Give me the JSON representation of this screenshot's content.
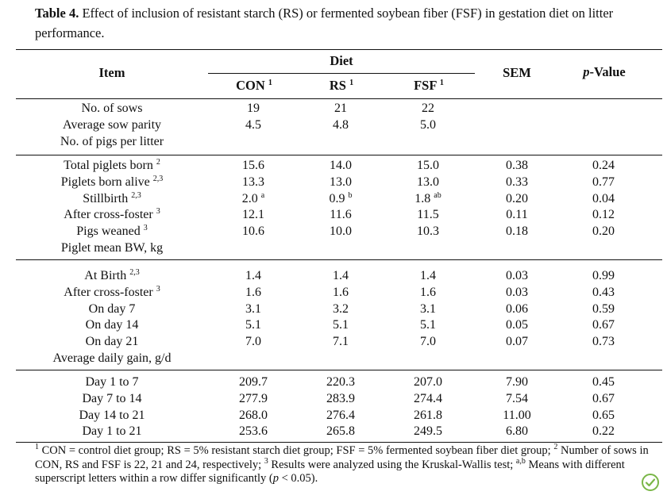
{
  "caption": {
    "label": "Table 4.",
    "text": "Effect of inclusion of resistant starch (RS) or fermented soybean fiber (FSF) in gestation diet on litter performance."
  },
  "headers": {
    "item": "Item",
    "diet": "Diet",
    "con": "CON",
    "con_sup": "1",
    "rs": "RS",
    "rs_sup": "1",
    "fsf": "FSF",
    "fsf_sup": "1",
    "sem": "SEM",
    "pvalue_italic": "p",
    "pvalue_rest": "-Value"
  },
  "groups": [
    {
      "rows": [
        {
          "item": "No. of sows",
          "item_sup": "",
          "con": "19",
          "con_sup": "",
          "rs": "21",
          "rs_sup": "",
          "fsf": "22",
          "fsf_sup": "",
          "sem": "",
          "p": ""
        },
        {
          "item": "Average sow parity",
          "item_sup": "",
          "con": "4.5",
          "con_sup": "",
          "rs": "4.8",
          "rs_sup": "",
          "fsf": "5.0",
          "fsf_sup": "",
          "sem": "",
          "p": ""
        },
        {
          "item": "No. of pigs per litter",
          "item_sup": "",
          "con": "",
          "con_sup": "",
          "rs": "",
          "rs_sup": "",
          "fsf": "",
          "fsf_sup": "",
          "sem": "",
          "p": ""
        }
      ]
    },
    {
      "rows": [
        {
          "item": "Total piglets born",
          "item_sup": "2",
          "con": "15.6",
          "con_sup": "",
          "rs": "14.0",
          "rs_sup": "",
          "fsf": "15.0",
          "fsf_sup": "",
          "sem": "0.38",
          "p": "0.24"
        },
        {
          "item": "Piglets born alive",
          "item_sup": "2,3",
          "con": "13.3",
          "con_sup": "",
          "rs": "13.0",
          "rs_sup": "",
          "fsf": "13.0",
          "fsf_sup": "",
          "sem": "0.33",
          "p": "0.77"
        },
        {
          "item": "Stillbirth",
          "item_sup": "2,3",
          "con": "2.0",
          "con_sup": "a",
          "rs": "0.9",
          "rs_sup": "b",
          "fsf": "1.8",
          "fsf_sup": "ab",
          "sem": "0.20",
          "p": "0.04"
        },
        {
          "item": "After cross-foster",
          "item_sup": "3",
          "con": "12.1",
          "con_sup": "",
          "rs": "11.6",
          "rs_sup": "",
          "fsf": "11.5",
          "fsf_sup": "",
          "sem": "0.11",
          "p": "0.12"
        },
        {
          "item": "Pigs weaned",
          "item_sup": "3",
          "con": "10.6",
          "con_sup": "",
          "rs": "10.0",
          "rs_sup": "",
          "fsf": "10.3",
          "fsf_sup": "",
          "sem": "0.18",
          "p": "0.20"
        },
        {
          "item": "Piglet mean BW, kg",
          "item_sup": "",
          "con": "",
          "con_sup": "",
          "rs": "",
          "rs_sup": "",
          "fsf": "",
          "fsf_sup": "",
          "sem": "",
          "p": ""
        }
      ]
    },
    {
      "rows": [
        {
          "item": "At Birth",
          "item_sup": "2,3",
          "con": "1.4",
          "con_sup": "",
          "rs": "1.4",
          "rs_sup": "",
          "fsf": "1.4",
          "fsf_sup": "",
          "sem": "0.03",
          "p": "0.99"
        },
        {
          "item": "After cross-foster",
          "item_sup": "3",
          "con": "1.6",
          "con_sup": "",
          "rs": "1.6",
          "rs_sup": "",
          "fsf": "1.6",
          "fsf_sup": "",
          "sem": "0.03",
          "p": "0.43"
        },
        {
          "item": "On day 7",
          "item_sup": "",
          "con": "3.1",
          "con_sup": "",
          "rs": "3.2",
          "rs_sup": "",
          "fsf": "3.1",
          "fsf_sup": "",
          "sem": "0.06",
          "p": "0.59"
        },
        {
          "item": "On day 14",
          "item_sup": "",
          "con": "5.1",
          "con_sup": "",
          "rs": "5.1",
          "rs_sup": "",
          "fsf": "5.1",
          "fsf_sup": "",
          "sem": "0.05",
          "p": "0.67"
        },
        {
          "item": "On day 21",
          "item_sup": "",
          "con": "7.0",
          "con_sup": "",
          "rs": "7.1",
          "rs_sup": "",
          "fsf": "7.0",
          "fsf_sup": "",
          "sem": "0.07",
          "p": "0.73"
        },
        {
          "item": "Average daily gain, g/d",
          "item_sup": "",
          "con": "",
          "con_sup": "",
          "rs": "",
          "rs_sup": "",
          "fsf": "",
          "fsf_sup": "",
          "sem": "",
          "p": ""
        }
      ]
    },
    {
      "rows": [
        {
          "item": "Day 1 to 7",
          "item_sup": "",
          "con": "209.7",
          "con_sup": "",
          "rs": "220.3",
          "rs_sup": "",
          "fsf": "207.0",
          "fsf_sup": "",
          "sem": "7.90",
          "p": "0.45"
        },
        {
          "item": "Day 7 to 14",
          "item_sup": "",
          "con": "277.9",
          "con_sup": "",
          "rs": "283.9",
          "rs_sup": "",
          "fsf": "274.4",
          "fsf_sup": "",
          "sem": "7.54",
          "p": "0.67"
        },
        {
          "item": "Day 14 to 21",
          "item_sup": "",
          "con": "268.0",
          "con_sup": "",
          "rs": "276.4",
          "rs_sup": "",
          "fsf": "261.8",
          "fsf_sup": "",
          "sem": "11.00",
          "p": "0.65"
        },
        {
          "item": "Day 1 to 21",
          "item_sup": "",
          "con": "253.6",
          "con_sup": "",
          "rs": "265.8",
          "rs_sup": "",
          "fsf": "249.5",
          "fsf_sup": "",
          "sem": "6.80",
          "p": "0.22"
        }
      ]
    }
  ],
  "footnote": {
    "sup1": "1",
    "t1": "CON = control diet group; RS = 5% resistant starch diet group; FSF = 5% fermented soybean fiber diet group;",
    "sup2": "2",
    "t2": "Number of sows in CON, RS and FSF is 22, 21 and 24, respectively;",
    "sup3": "3",
    "t3": "Results were analyzed using the Kruskal-Wallis test;",
    "supab": "a,b",
    "t4": "Means with different superscript letters within a row differ significantly (",
    "p_italic": "p",
    "t5": "< 0.05)."
  },
  "badge_icon": "check-circle-icon"
}
